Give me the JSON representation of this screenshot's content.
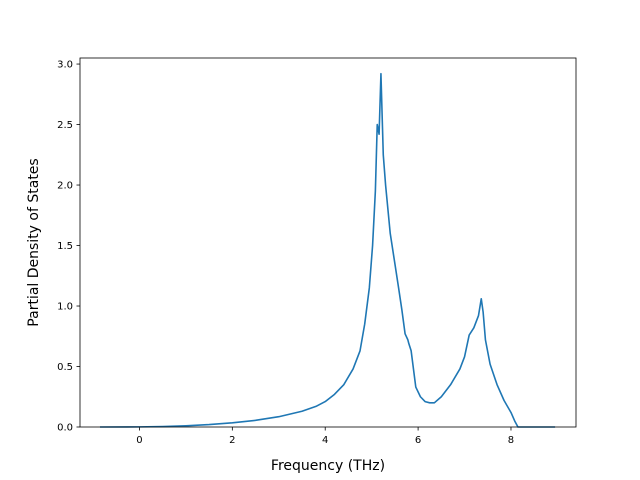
{
  "chart_data": {
    "type": "line",
    "title": "",
    "xlabel": "Frequency (THz)",
    "ylabel": "Partial Density of States",
    "xlim": [
      -1.28,
      9.4
    ],
    "ylim": [
      0.0,
      3.05
    ],
    "x_ticks": [
      0,
      2,
      4,
      6,
      8
    ],
    "x_tick_labels": [
      "0",
      "2",
      "4",
      "6",
      "8"
    ],
    "y_ticks": [
      0.0,
      0.5,
      1.0,
      1.5,
      2.0,
      2.5,
      3.0
    ],
    "y_tick_labels": [
      "0.0",
      "0.5",
      "1.0",
      "1.5",
      "2.0",
      "2.5",
      "3.0"
    ],
    "grid": false,
    "legend": "none",
    "series": [
      {
        "color": "#1f77b4",
        "x": [
          -0.85,
          0.0,
          0.5,
          1.0,
          1.5,
          2.0,
          2.5,
          3.0,
          3.5,
          3.8,
          4.0,
          4.2,
          4.4,
          4.6,
          4.75,
          4.85,
          4.95,
          5.02,
          5.08,
          5.12,
          5.16,
          5.2,
          5.25,
          5.3,
          5.4,
          5.5,
          5.58,
          5.65,
          5.72,
          5.78,
          5.8,
          5.85,
          5.95,
          6.05,
          6.15,
          6.25,
          6.35,
          6.5,
          6.7,
          6.9,
          7.0,
          7.1,
          7.2,
          7.3,
          7.36,
          7.4,
          7.45,
          7.55,
          7.7,
          7.85,
          8.0,
          8.08,
          8.15,
          8.5,
          8.95
        ],
        "y": [
          0.0,
          0.001,
          0.004,
          0.01,
          0.02,
          0.035,
          0.055,
          0.085,
          0.13,
          0.17,
          0.21,
          0.27,
          0.35,
          0.48,
          0.63,
          0.85,
          1.15,
          1.5,
          1.95,
          2.5,
          2.42,
          2.92,
          2.25,
          2.0,
          1.6,
          1.35,
          1.15,
          0.97,
          0.77,
          0.72,
          0.69,
          0.63,
          0.33,
          0.25,
          0.21,
          0.2,
          0.2,
          0.25,
          0.35,
          0.48,
          0.58,
          0.76,
          0.82,
          0.92,
          1.06,
          0.95,
          0.72,
          0.52,
          0.35,
          0.22,
          0.12,
          0.05,
          0.0,
          0.0,
          0.0
        ]
      }
    ]
  }
}
